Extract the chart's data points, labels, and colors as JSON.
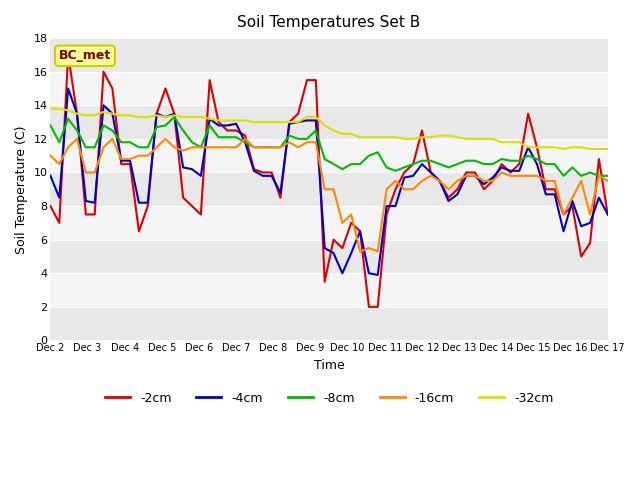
{
  "title": "Soil Temperatures Set B",
  "xlabel": "Time",
  "ylabel": "Soil Temperature (C)",
  "annotation": "BC_met",
  "ylim": [
    0,
    18
  ],
  "xlim": [
    0,
    15
  ],
  "x_tick_labels": [
    "Dec 2",
    "Dec 3",
    "Dec 4",
    "Dec 5",
    "Dec 6",
    "Dec 7",
    "Dec 8",
    "Dec 9",
    "Dec 10",
    "Dec 11",
    "Dec 12",
    "Dec 13",
    "Dec 14",
    "Dec 15",
    "Dec 16",
    "Dec 17"
  ],
  "legend_labels": [
    "-2cm",
    "-4cm",
    "-8cm",
    "-16cm",
    "-32cm"
  ],
  "colors": {
    "-2cm": "#dd0000",
    "-4cm": "#0000cc",
    "-8cm": "#00bb00",
    "-16cm": "#ff8800",
    "-32cm": "#dddd00"
  },
  "series": {
    "-2cm": [
      8.0,
      7.0,
      17.0,
      13.5,
      7.5,
      7.5,
      16.0,
      15.0,
      10.5,
      10.5,
      6.5,
      8.0,
      13.5,
      15.0,
      13.5,
      8.5,
      8.0,
      7.5,
      15.5,
      13.0,
      12.5,
      12.5,
      12.2,
      10.2,
      10.0,
      10.0,
      8.5,
      13.0,
      13.5,
      15.5,
      15.5,
      3.5,
      6.0,
      5.5,
      7.0,
      6.5,
      2.0,
      2.0,
      7.5,
      9.0,
      10.0,
      10.5,
      12.5,
      10.0,
      9.5,
      8.5,
      9.0,
      10.0,
      10.0,
      9.0,
      9.5,
      10.5,
      10.0,
      10.5,
      13.5,
      11.5,
      9.0,
      9.0,
      7.5,
      8.0,
      5.0,
      5.8,
      10.8,
      7.5
    ],
    "-4cm": [
      9.8,
      8.5,
      15.0,
      13.5,
      8.3,
      8.2,
      14.0,
      13.5,
      10.7,
      10.7,
      8.2,
      8.2,
      13.5,
      13.3,
      13.5,
      10.3,
      10.2,
      9.8,
      13.2,
      12.8,
      12.8,
      12.9,
      11.8,
      10.1,
      9.8,
      9.8,
      8.8,
      12.9,
      13.0,
      13.1,
      13.1,
      5.5,
      5.2,
      4.0,
      5.2,
      6.5,
      4.0,
      3.9,
      8.0,
      8.0,
      9.7,
      9.8,
      10.5,
      10.0,
      9.5,
      8.3,
      8.7,
      9.8,
      9.8,
      9.3,
      9.7,
      10.3,
      10.1,
      10.1,
      11.5,
      10.5,
      8.7,
      8.7,
      6.5,
      8.3,
      6.8,
      7.0,
      8.5,
      7.5
    ],
    "-8cm": [
      12.8,
      11.8,
      13.2,
      12.5,
      11.5,
      11.5,
      12.8,
      12.5,
      11.8,
      11.8,
      11.5,
      11.5,
      12.7,
      12.8,
      13.3,
      12.5,
      11.8,
      11.5,
      12.8,
      12.1,
      12.1,
      12.1,
      11.8,
      11.5,
      11.5,
      11.5,
      11.5,
      12.2,
      12.0,
      12.0,
      12.5,
      10.8,
      10.5,
      10.2,
      10.5,
      10.5,
      11.0,
      11.2,
      10.3,
      10.1,
      10.3,
      10.5,
      10.7,
      10.7,
      10.5,
      10.3,
      10.5,
      10.7,
      10.7,
      10.5,
      10.5,
      10.8,
      10.7,
      10.7,
      11.0,
      10.8,
      10.5,
      10.5,
      9.8,
      10.3,
      9.8,
      10.0,
      9.8,
      9.8
    ],
    "-16cm": [
      11.0,
      10.5,
      11.5,
      12.0,
      10.0,
      10.0,
      11.5,
      12.0,
      10.8,
      10.8,
      11.0,
      11.0,
      11.5,
      12.0,
      11.5,
      11.3,
      11.5,
      11.5,
      11.5,
      11.5,
      11.5,
      11.5,
      12.0,
      11.5,
      11.5,
      11.5,
      11.5,
      11.8,
      11.5,
      11.8,
      11.8,
      9.0,
      9.0,
      7.0,
      7.5,
      5.3,
      5.5,
      5.3,
      9.0,
      9.5,
      9.0,
      9.0,
      9.5,
      9.8,
      9.5,
      9.0,
      9.5,
      9.8,
      9.8,
      9.5,
      9.5,
      10.0,
      9.8,
      9.8,
      9.8,
      9.8,
      9.5,
      9.5,
      7.5,
      8.5,
      9.5,
      7.5,
      9.8,
      9.5
    ],
    "-32cm": [
      13.8,
      13.8,
      13.7,
      13.5,
      13.4,
      13.4,
      13.6,
      13.5,
      13.4,
      13.4,
      13.3,
      13.3,
      13.4,
      13.3,
      13.4,
      13.3,
      13.3,
      13.3,
      13.2,
      13.1,
      13.1,
      13.1,
      13.1,
      13.0,
      13.0,
      13.0,
      13.0,
      13.0,
      13.0,
      13.3,
      13.3,
      12.8,
      12.5,
      12.3,
      12.3,
      12.1,
      12.1,
      12.1,
      12.1,
      12.1,
      12.0,
      12.0,
      12.1,
      12.1,
      12.2,
      12.2,
      12.1,
      12.0,
      12.0,
      12.0,
      12.0,
      11.8,
      11.8,
      11.8,
      11.5,
      11.5,
      11.5,
      11.5,
      11.4,
      11.5,
      11.5,
      11.4,
      11.4,
      11.4
    ]
  },
  "n_points": 64,
  "fig_bg": "#ffffff",
  "band_colors": [
    "#e8e8e8",
    "#f5f5f5"
  ],
  "grid_color": "#ffffff",
  "annotation_box_color": "#ffff99",
  "annotation_text_color": "#800000",
  "annotation_edge_color": "#cccc00"
}
